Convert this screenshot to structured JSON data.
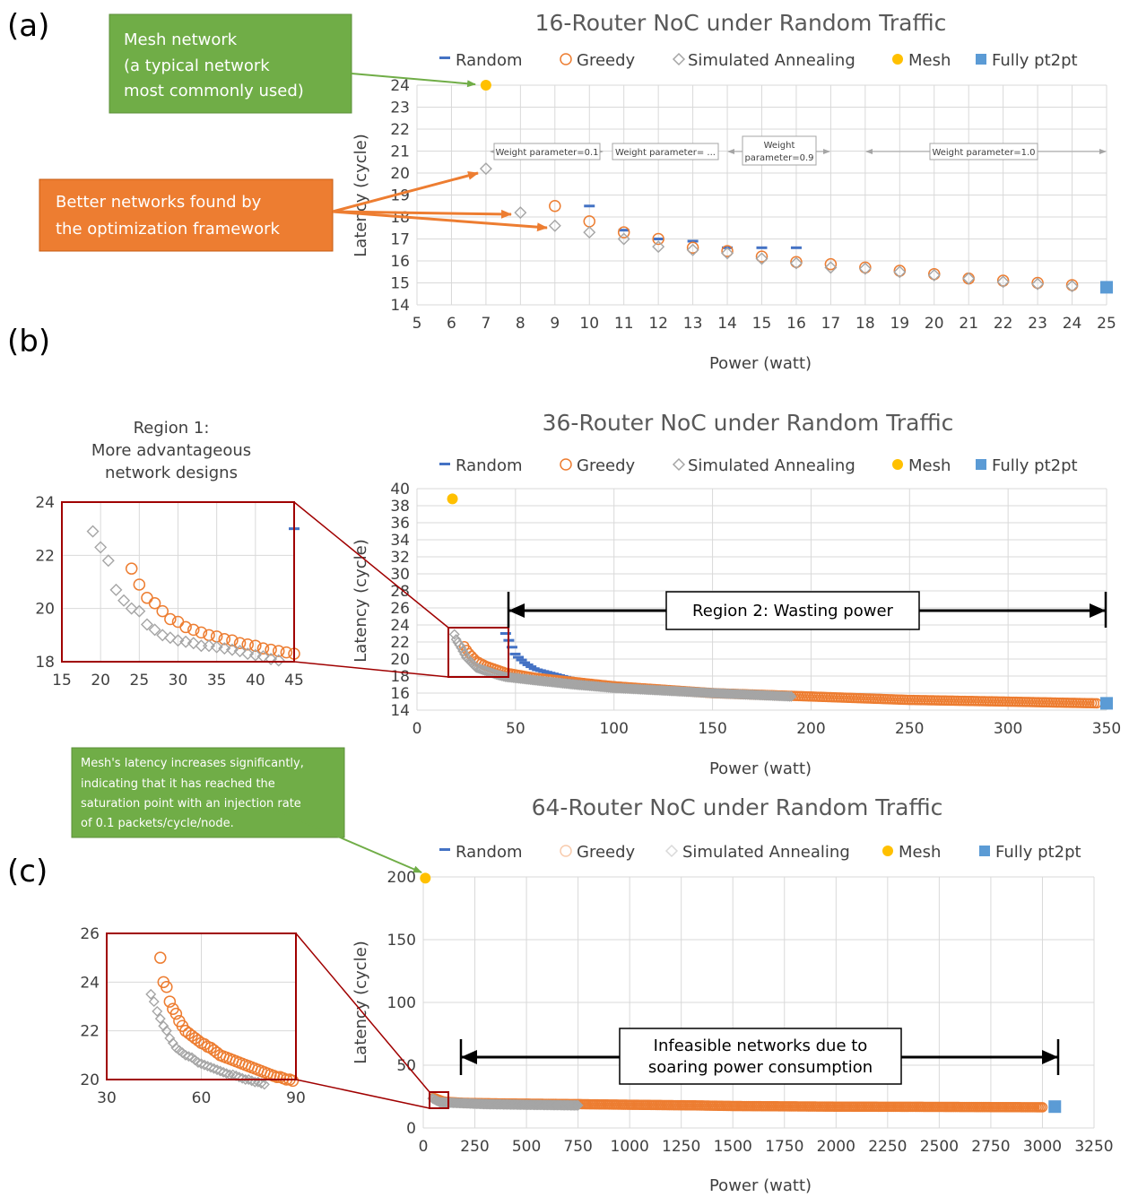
{
  "panels": {
    "a": "(a)",
    "b": "(b)",
    "c": "(c)"
  },
  "legend": {
    "random": "Random",
    "greedy": "Greedy",
    "sa": "Simulated Annealing",
    "mesh": "Mesh",
    "full": "Fully pt2pt"
  },
  "colors": {
    "random": "#4472C4",
    "greedy": "#ED7D31",
    "sa": "#A5A5A5",
    "mesh": "#FFC000",
    "full": "#5B9BD5",
    "callout_green": "#70AD47",
    "callout_orange": "#ED7D31",
    "zoom_box": "#A00000"
  },
  "annotations": {
    "mesh_callout": [
      "Mesh network",
      "(a typical network",
      "most commonly used)"
    ],
    "better_callout": [
      "Better networks found by",
      "the optimization framework"
    ],
    "weights": [
      "Weight parameter=0.1",
      "Weight parameter= ...",
      "Weight",
      "parameter=0.9",
      "Weight parameter=1.0"
    ],
    "region1": [
      "Region 1:",
      "More advantageous",
      "network designs"
    ],
    "region2": "Region 2: Wasting power",
    "mesh_sat": [
      "Mesh's latency increases significantly,",
      "indicating that it has reached the",
      "saturation point with an injection rate",
      "of 0.1 packets/cycle/node."
    ],
    "infeasible": [
      "Infeasible networks due to",
      "soaring power consumption"
    ]
  },
  "chart_data": [
    {
      "id": "a",
      "type": "scatter",
      "title": "16-Router NoC under Random Traffic",
      "xlabel": "Power (watt)",
      "ylabel": "Latency (cycle)",
      "xlim": [
        5,
        25
      ],
      "ylim": [
        14,
        24
      ],
      "xticks": [
        5,
        6,
        7,
        8,
        9,
        10,
        11,
        12,
        13,
        14,
        15,
        16,
        17,
        18,
        19,
        20,
        21,
        22,
        23,
        24,
        25
      ],
      "yticks": [
        14,
        15,
        16,
        17,
        18,
        19,
        20,
        21,
        22,
        23,
        24
      ],
      "grid": true,
      "legend": "top",
      "series": [
        {
          "name": "Random",
          "x": [
            10,
            11,
            12,
            13,
            14,
            15,
            16
          ],
          "y": [
            18.5,
            17.4,
            17.0,
            16.9,
            16.6,
            16.6,
            16.6
          ]
        },
        {
          "name": "Greedy",
          "x": [
            9,
            10,
            11,
            12,
            13,
            14,
            15,
            16,
            17,
            18,
            19,
            20,
            21,
            22,
            23,
            24
          ],
          "y": [
            18.5,
            17.8,
            17.3,
            17.0,
            16.6,
            16.45,
            16.2,
            15.95,
            15.85,
            15.7,
            15.55,
            15.4,
            15.2,
            15.1,
            15.0,
            14.9
          ]
        },
        {
          "name": "Simulated Annealing",
          "x": [
            7,
            8,
            9,
            10,
            11,
            12,
            13,
            14,
            15,
            16,
            17,
            18,
            19,
            20,
            21,
            22,
            23,
            24
          ],
          "y": [
            20.2,
            18.2,
            17.6,
            17.3,
            17.0,
            16.65,
            16.5,
            16.35,
            16.1,
            15.9,
            15.7,
            15.65,
            15.5,
            15.35,
            15.2,
            15.05,
            14.95,
            14.85
          ]
        },
        {
          "name": "Mesh",
          "x": [
            7
          ],
          "y": [
            24
          ]
        },
        {
          "name": "Fully pt2pt",
          "x": [
            25
          ],
          "y": [
            14.8
          ]
        }
      ]
    },
    {
      "id": "b",
      "type": "scatter",
      "title": "36-Router NoC under Random Traffic",
      "xlabel": "Power (watt)",
      "ylabel": "Latency (cycle)",
      "xlim": [
        0,
        350
      ],
      "ylim": [
        14,
        40
      ],
      "xticks": [
        0,
        50,
        100,
        150,
        200,
        250,
        300,
        350
      ],
      "yticks": [
        14,
        16,
        18,
        20,
        22,
        24,
        26,
        28,
        30,
        32,
        34,
        36,
        38,
        40
      ],
      "grid": true,
      "legend": "top",
      "series": [
        {
          "name": "Random",
          "x": [
            45,
            47,
            50,
            55,
            60,
            70,
            80,
            100,
            120,
            140
          ],
          "y": [
            23.0,
            22.0,
            20.5,
            19.5,
            18.8,
            18.2,
            17.6,
            17.2,
            16.8,
            16.4
          ]
        },
        {
          "name": "Greedy",
          "x": [
            24,
            26,
            28,
            30,
            35,
            40,
            45,
            60,
            100,
            150,
            200,
            250,
            300,
            345
          ],
          "y": [
            21.5,
            20.8,
            20.3,
            19.8,
            19.2,
            18.8,
            18.4,
            17.8,
            16.8,
            16.0,
            15.6,
            15.2,
            15.0,
            14.8
          ]
        },
        {
          "name": "Simulated Annealing",
          "x": [
            19,
            20,
            22,
            25,
            28,
            30,
            35,
            40,
            45,
            60,
            80,
            100,
            150,
            190
          ],
          "y": [
            22.9,
            22.2,
            21.5,
            20.2,
            19.5,
            19.0,
            18.6,
            18.2,
            17.9,
            17.5,
            17.0,
            16.6,
            16.0,
            15.6
          ]
        },
        {
          "name": "Mesh",
          "x": [
            18
          ],
          "y": [
            38.8
          ]
        },
        {
          "name": "Fully pt2pt",
          "x": [
            350
          ],
          "y": [
            14.8
          ]
        }
      ]
    },
    {
      "id": "b-inset",
      "type": "scatter",
      "xlim": [
        15,
        45
      ],
      "ylim": [
        18,
        24
      ],
      "xticks": [
        15,
        20,
        25,
        30,
        35,
        40,
        45
      ],
      "yticks": [
        18,
        20,
        22,
        24
      ],
      "grid": true,
      "series": [
        {
          "name": "Random",
          "x": [
            45
          ],
          "y": [
            23
          ]
        },
        {
          "name": "Greedy",
          "x": [
            24,
            25,
            26,
            27,
            28,
            29,
            30,
            31,
            32,
            33,
            34,
            35,
            36,
            37,
            38,
            39,
            40,
            41,
            42,
            43,
            44,
            45
          ],
          "y": [
            21.5,
            20.9,
            20.4,
            20.2,
            19.9,
            19.6,
            19.5,
            19.3,
            19.2,
            19.1,
            19.0,
            18.95,
            18.85,
            18.8,
            18.7,
            18.65,
            18.6,
            18.5,
            18.45,
            18.4,
            18.35,
            18.3
          ]
        },
        {
          "name": "Simulated Annealing",
          "x": [
            19,
            20,
            21,
            22,
            23,
            24,
            25,
            26,
            27,
            28,
            29,
            30,
            31,
            32,
            33,
            34,
            35,
            36,
            37,
            38,
            39,
            40,
            41,
            42,
            43
          ],
          "y": [
            22.9,
            22.3,
            21.8,
            20.7,
            20.3,
            20.0,
            19.9,
            19.4,
            19.2,
            19.0,
            18.9,
            18.8,
            18.75,
            18.7,
            18.6,
            18.6,
            18.55,
            18.5,
            18.45,
            18.4,
            18.3,
            18.25,
            18.2,
            18.1,
            18.05
          ]
        }
      ]
    },
    {
      "id": "c",
      "type": "scatter",
      "title": "64-Router NoC under Random Traffic",
      "xlabel": "Power (watt)",
      "ylabel": "Latency (cycle)",
      "xlim": [
        0,
        3250
      ],
      "ylim": [
        0,
        200
      ],
      "xticks": [
        0,
        250,
        500,
        750,
        1000,
        1250,
        1500,
        1750,
        2000,
        2250,
        2500,
        2750,
        3000,
        3250
      ],
      "yticks": [
        0,
        50,
        100,
        150,
        200
      ],
      "grid": true,
      "legend": "top",
      "series": [
        {
          "name": "Random",
          "x": [],
          "y": []
        },
        {
          "name": "Greedy",
          "x": [
            50,
            100,
            200,
            400,
            750,
            1000,
            1320,
            1500,
            2000,
            2500,
            3000
          ],
          "y": [
            24,
            21,
            20,
            19.5,
            19,
            18.5,
            18,
            17.5,
            17,
            16.8,
            16.5
          ]
        },
        {
          "name": "Simulated Annealing",
          "x": [
            45,
            80,
            150,
            300,
            500,
            750
          ],
          "y": [
            23.5,
            20.5,
            20,
            19,
            18.5,
            18
          ]
        },
        {
          "name": "Mesh",
          "x": [
            10
          ],
          "y": [
            199
          ]
        },
        {
          "name": "Fully pt2pt",
          "x": [
            3060
          ],
          "y": [
            17
          ]
        }
      ]
    },
    {
      "id": "c-inset",
      "type": "scatter",
      "xlim": [
        30,
        90
      ],
      "ylim": [
        20,
        26
      ],
      "xticks": [
        30,
        60,
        90
      ],
      "yticks": [
        20,
        22,
        24,
        26
      ],
      "grid": true,
      "series": [
        {
          "name": "Greedy",
          "x": [
            47,
            48,
            49,
            50,
            51,
            52,
            53,
            54,
            55,
            56,
            57,
            58,
            59,
            60,
            61,
            62,
            63,
            64,
            65,
            66,
            67,
            68,
            69,
            70,
            71,
            72,
            73,
            74,
            75,
            76,
            77,
            78,
            79,
            80,
            81,
            82,
            83,
            84,
            85,
            86,
            87,
            88,
            89
          ],
          "y": [
            25.0,
            24.0,
            23.8,
            23.2,
            22.9,
            22.7,
            22.4,
            22.2,
            22.0,
            21.9,
            21.8,
            21.7,
            21.6,
            21.5,
            21.45,
            21.35,
            21.3,
            21.2,
            21.1,
            21.0,
            20.95,
            20.9,
            20.85,
            20.8,
            20.75,
            20.7,
            20.65,
            20.6,
            20.55,
            20.5,
            20.45,
            20.4,
            20.35,
            20.3,
            20.25,
            20.2,
            20.15,
            20.1,
            20.1,
            20.05,
            20.0,
            20.0,
            19.95
          ]
        },
        {
          "name": "Simulated Annealing",
          "x": [
            44,
            45,
            46,
            47,
            48,
            49,
            50,
            51,
            52,
            53,
            54,
            55,
            56,
            57,
            58,
            59,
            60,
            61,
            62,
            63,
            64,
            65,
            66,
            67,
            68,
            69,
            70,
            71,
            72,
            73,
            74,
            75,
            76,
            77,
            78,
            79,
            80
          ],
          "y": [
            23.5,
            23.2,
            22.8,
            22.5,
            22.2,
            22.0,
            21.7,
            21.5,
            21.3,
            21.2,
            21.1,
            21.0,
            20.95,
            20.9,
            20.8,
            20.7,
            20.65,
            20.6,
            20.55,
            20.5,
            20.45,
            20.4,
            20.35,
            20.3,
            20.25,
            20.2,
            20.2,
            20.15,
            20.1,
            20.05,
            20.0,
            20.0,
            19.95,
            19.9,
            19.9,
            19.85,
            19.8
          ]
        }
      ]
    }
  ]
}
